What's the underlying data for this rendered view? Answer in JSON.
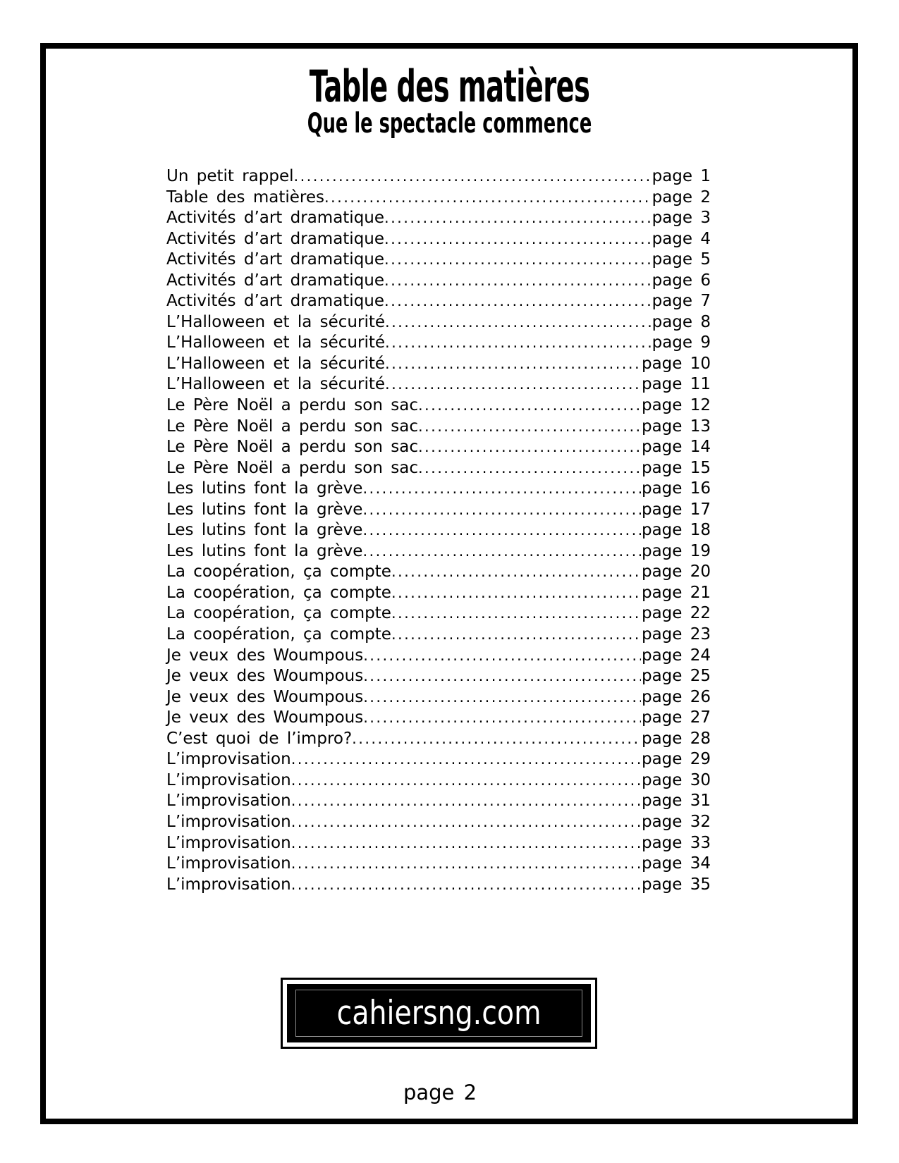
{
  "document": {
    "title": "Table des matières",
    "subtitle": "Que le spectacle commence",
    "footer_page_label": "page 2",
    "website": "cahiersng.com"
  },
  "toc": {
    "entries": [
      {
        "title": "Un petit rappel",
        "page": "page 1"
      },
      {
        "title": "Table des matières",
        "page": "page 2"
      },
      {
        "title": "Activités d’art dramatique",
        "page": "page 3"
      },
      {
        "title": "Activités d’art dramatique",
        "page": "page 4"
      },
      {
        "title": "Activités d’art dramatique",
        "page": "page 5"
      },
      {
        "title": "Activités d’art dramatique",
        "page": "page 6"
      },
      {
        "title": "Activités d’art dramatique",
        "page": "page 7"
      },
      {
        "title": "L’Halloween et la sécurité",
        "page": "page 8"
      },
      {
        "title": "L’Halloween et la sécurité",
        "page": "page 9"
      },
      {
        "title": "L’Halloween et la sécurité",
        "page": "page 10"
      },
      {
        "title": "L’Halloween et la sécurité",
        "page": "page 11"
      },
      {
        "title": "Le Père Noël a perdu son sac",
        "page": "page 12"
      },
      {
        "title": "Le Père Noël a perdu son sac",
        "page": "page 13"
      },
      {
        "title": "Le Père Noël a perdu son sac",
        "page": "page 14"
      },
      {
        "title": "Le Père Noël a perdu son sac",
        "page": "page 15"
      },
      {
        "title": "Les lutins font la grève",
        "page": "page 16"
      },
      {
        "title": "Les lutins font la grève",
        "page": "page 17"
      },
      {
        "title": "Les lutins font la grève",
        "page": "page 18"
      },
      {
        "title": "Les lutins font la grève",
        "page": "page 19"
      },
      {
        "title": "La coopération, ça compte",
        "page": "page 20"
      },
      {
        "title": "La coopération, ça compte",
        "page": "page 21"
      },
      {
        "title": "La coopération, ça compte",
        "page": "page 22"
      },
      {
        "title": "La coopération, ça compte",
        "page": "page 23"
      },
      {
        "title": "Je veux des Woumpous",
        "page": "page 24"
      },
      {
        "title": "Je veux des Woumpous",
        "page": "page 25"
      },
      {
        "title": "Je veux des Woumpous",
        "page": "page 26"
      },
      {
        "title": "Je veux des Woumpous",
        "page": "page 27"
      },
      {
        "title": "C’est quoi de l’impro?",
        "page": "page 28"
      },
      {
        "title": "L’improvisation",
        "page": "page 29"
      },
      {
        "title": "L’improvisation",
        "page": "page 30"
      },
      {
        "title": "L’improvisation",
        "page": "page 31"
      },
      {
        "title": "L’improvisation",
        "page": "page 32"
      },
      {
        "title": "L’improvisation",
        "page": "page 33"
      },
      {
        "title": "L’improvisation",
        "page": "page 34"
      },
      {
        "title": "L’improvisation",
        "page": "page 35"
      }
    ]
  },
  "colors": {
    "ink": "#000000",
    "paper": "#ffffff",
    "website_box_bg": "#000000",
    "website_text": "#ffffff"
  }
}
